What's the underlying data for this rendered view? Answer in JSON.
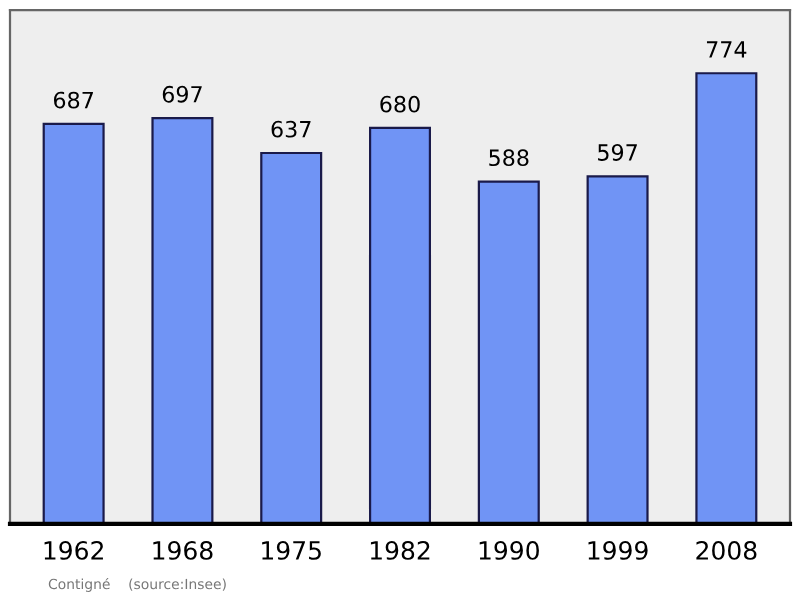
{
  "chart_data": {
    "type": "bar",
    "categories": [
      "1962",
      "1968",
      "1975",
      "1982",
      "1990",
      "1999",
      "2008"
    ],
    "values": [
      687,
      697,
      637,
      680,
      588,
      597,
      774
    ],
    "color": "#7094f5",
    "data_labels": true,
    "grid": false,
    "legend": false,
    "tick_labels": "x",
    "annotations": [
      "Contigné    (source:Insee)"
    ]
  }
}
